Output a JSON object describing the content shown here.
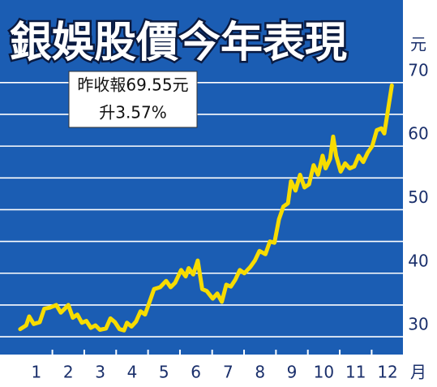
{
  "chart_data": {
    "type": "line",
    "title": "銀娛股價今年表現",
    "y_unit": "元",
    "x_unit": "月",
    "annotation": [
      "昨收報69.55元",
      "升3.57%"
    ],
    "color": "#f7dc00",
    "background": "#1b5db3",
    "grid": true,
    "xlim": [
      -0.67,
      12.72
    ],
    "ylim": [
      27.2,
      83
    ],
    "yticks": [
      30,
      40,
      50,
      60,
      70
    ],
    "minor_yticks": [
      35,
      45,
      55,
      65
    ],
    "xticks": [
      {
        "value": 0.54,
        "label": "1"
      },
      {
        "value": 1.6,
        "label": "2"
      },
      {
        "value": 2.66,
        "label": "3"
      },
      {
        "value": 3.72,
        "label": "4"
      },
      {
        "value": 4.78,
        "label": "5"
      },
      {
        "value": 5.84,
        "label": "6"
      },
      {
        "value": 6.91,
        "label": "7"
      },
      {
        "value": 7.97,
        "label": "8"
      },
      {
        "value": 9.03,
        "label": "9"
      },
      {
        "value": 10.09,
        "label": "10"
      },
      {
        "value": 11.15,
        "label": "11"
      },
      {
        "value": 12.21,
        "label": "12"
      }
    ],
    "minor_xticks": [
      1.07,
      2.13,
      3.19,
      4.25,
      5.31,
      6.38,
      7.44,
      8.5,
      9.56,
      10.62,
      11.68
    ],
    "x": [
      0.0,
      0.2,
      0.3,
      0.45,
      0.65,
      0.8,
      1.0,
      1.2,
      1.35,
      1.5,
      1.6,
      1.75,
      1.9,
      2.05,
      2.2,
      2.35,
      2.5,
      2.65,
      2.85,
      3.0,
      3.15,
      3.3,
      3.45,
      3.55,
      3.7,
      3.85,
      4.0,
      4.15,
      4.3,
      4.45,
      4.65,
      4.85,
      5.0,
      5.15,
      5.35,
      5.5,
      5.6,
      5.75,
      5.9,
      6.05,
      6.2,
      6.4,
      6.55,
      6.7,
      6.85,
      7.0,
      7.15,
      7.3,
      7.45,
      7.65,
      7.8,
      7.95,
      8.15,
      8.3,
      8.45,
      8.6,
      8.75,
      8.9,
      9.0,
      9.15,
      9.3,
      9.45,
      9.6,
      9.75,
      9.9,
      10.05,
      10.15,
      10.3,
      10.4,
      10.5,
      10.65,
      10.8,
      10.95,
      11.1,
      11.25,
      11.4,
      11.55,
      11.7,
      11.85,
      12.0,
      12.1,
      12.35
    ],
    "values": [
      31.2,
      31.8,
      33.2,
      32.0,
      32.3,
      34.4,
      34.6,
      35.0,
      33.8,
      34.5,
      35.0,
      33.0,
      33.5,
      32.2,
      32.5,
      31.4,
      31.8,
      31.1,
      31.3,
      32.9,
      32.3,
      31.2,
      31.0,
      32.2,
      31.6,
      32.4,
      34.0,
      33.5,
      35.5,
      37.5,
      37.8,
      38.8,
      37.8,
      38.5,
      40.5,
      39.5,
      40.8,
      39.8,
      42.0,
      37.5,
      37.2,
      36.0,
      36.8,
      35.5,
      38.2,
      37.9,
      39.0,
      40.5,
      40.0,
      41.0,
      42.0,
      43.5,
      43.0,
      45.0,
      44.8,
      48.5,
      50.5,
      51.0,
      54.5,
      53.0,
      55.5,
      53.5,
      54.0,
      57.0,
      55.5,
      58.5,
      56.5,
      58.0,
      61.5,
      58.5,
      56.0,
      57.3,
      56.5,
      56.8,
      58.5,
      57.5,
      59.0,
      60.0,
      62.5,
      62.8,
      62.0,
      69.55
    ]
  }
}
